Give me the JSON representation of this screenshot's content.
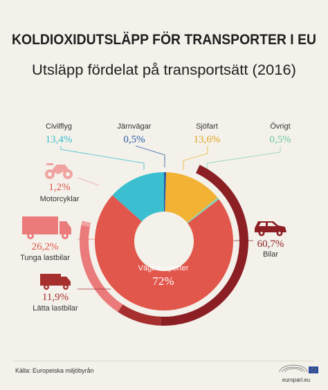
{
  "title": "KOLDIOXIDUTSLÄPP FÖR TRANSPORTER I EU",
  "subtitle": "Utsläpp fördelat på transportsätt (2016)",
  "source": "Källa: Europeiska miljöbyrån",
  "logo_text": "europarl.eu",
  "colors": {
    "civilflyg": "#3bbfd0",
    "jarnvagar": "#2a5aa5",
    "sjofart": "#f2b233",
    "ovrigt": "#86d3b6",
    "vagtransporter": "#e2574c",
    "bilar": "#8c1f24",
    "tunga_lastbilar": "#eb7a7a",
    "motorcyklar": "#f1a3a1",
    "latta_lastbilar": "#a7302f"
  },
  "chart_data": {
    "type": "pie",
    "inner": {
      "labels": [
        "Civilflyg",
        "Järnvägar",
        "Sjöfart",
        "Övrigt",
        "Vägtransporter"
      ],
      "values": [
        13.4,
        0.5,
        13.6,
        0.5,
        72
      ],
      "display": [
        "13,4%",
        "0,5%",
        "13,6%",
        "0,5%",
        "72%"
      ]
    },
    "outer": {
      "labels": [
        "Bilar",
        "Lätta lastbilar",
        "Tunga lastbilar",
        "Motorcyklar"
      ],
      "values": [
        60.7,
        11.9,
        26.2,
        1.2
      ],
      "display": [
        "60,7%",
        "11,9%",
        "26,2%",
        "1,2%"
      ]
    }
  }
}
